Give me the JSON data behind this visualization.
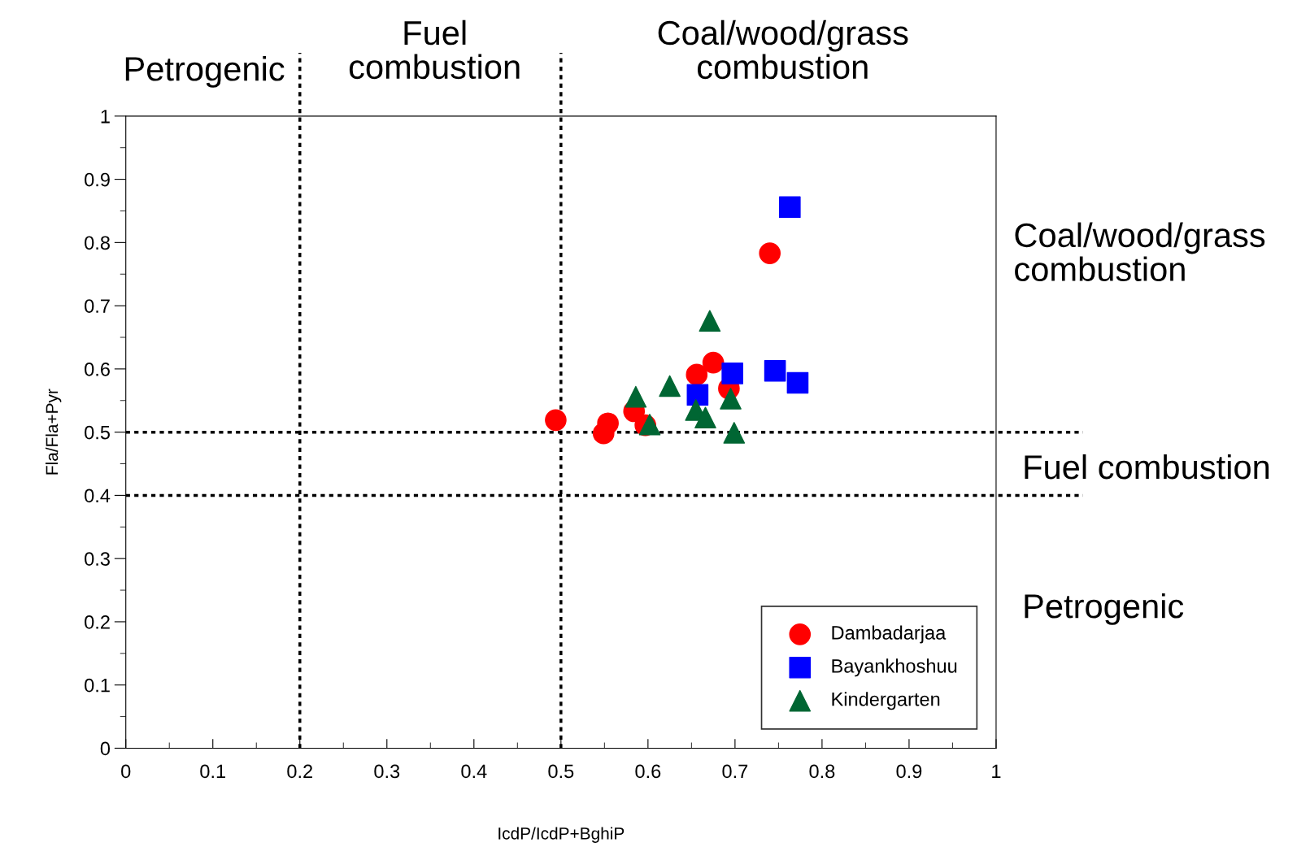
{
  "chart_data": {
    "type": "scatter",
    "xlabel": "IcdP/IcdP+BghiP",
    "ylabel": "Fla/Fla+Pyr",
    "xlim": [
      0,
      1
    ],
    "ylim": [
      0,
      1
    ],
    "xticks": [
      0,
      0.1,
      0.2,
      0.3,
      0.4,
      0.5,
      0.6,
      0.7,
      0.8,
      0.9,
      1
    ],
    "yticks": [
      0,
      0.1,
      0.2,
      0.3,
      0.4,
      0.5,
      0.6,
      0.7,
      0.8,
      0.9,
      1
    ],
    "grid": false,
    "legend": "bottom right",
    "series": [
      {
        "name": "Dambadarjaa",
        "color": "#ff0000",
        "marker": "circle",
        "x": [
          0.494,
          0.554,
          0.549,
          0.584,
          0.597,
          0.656,
          0.675,
          0.693,
          0.74
        ],
        "values": [
          0.519,
          0.514,
          0.498,
          0.533,
          0.511,
          0.591,
          0.61,
          0.569,
          0.783
        ]
      },
      {
        "name": "Bayankhoshuu",
        "color": "#0000ff",
        "marker": "square",
        "x": [
          0.657,
          0.697,
          0.746,
          0.772,
          0.763
        ],
        "values": [
          0.559,
          0.593,
          0.597,
          0.578,
          0.856
        ]
      },
      {
        "name": "Kindergarten",
        "color": "#006633",
        "marker": "triangle",
        "x": [
          0.586,
          0.602,
          0.625,
          0.671,
          0.655,
          0.666,
          0.695,
          0.699
        ],
        "values": [
          0.556,
          0.512,
          0.573,
          0.676,
          0.535,
          0.523,
          0.553,
          0.499
        ]
      }
    ],
    "ref_lines": [
      {
        "axis": "x",
        "value": 0.2,
        "color": "#000000",
        "line_style": "dotted"
      },
      {
        "axis": "x",
        "value": 0.5,
        "color": "#000000",
        "line_style": "dotted"
      },
      {
        "axis": "y",
        "value": 0.5,
        "color": "#000000",
        "line_style": "dotted"
      },
      {
        "axis": "y",
        "value": 0.4,
        "color": "#000000",
        "line_style": "dotted"
      }
    ],
    "annotations": [
      "Petrogenic",
      "Fuel\ncombustion",
      "Coal/wood/grass\ncombustion",
      "Coal/wood/grass\ncombustion",
      "Fuel combustion",
      "Petrogenic"
    ]
  }
}
